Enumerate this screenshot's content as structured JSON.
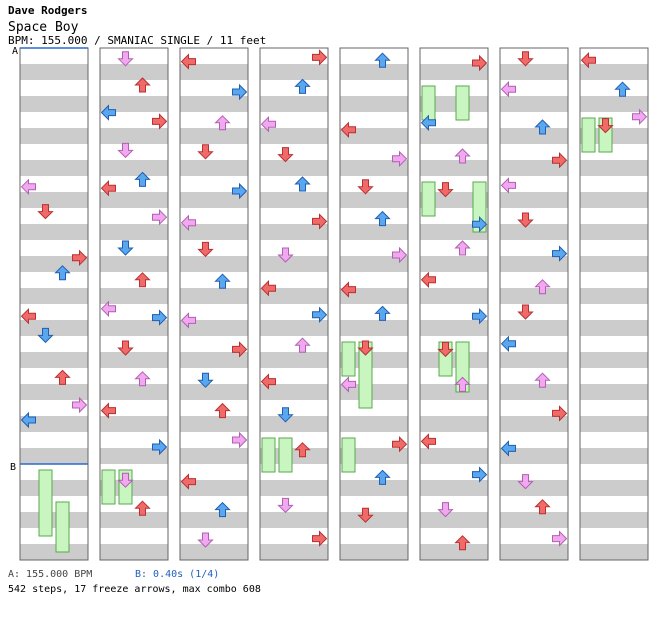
{
  "header": {
    "artist": "Dave Rodgers",
    "song": "Space Boy",
    "meta": "BPM: 155.000 / SMANIAC SINGLE / 11 feet"
  },
  "markers": {
    "a_label": "A",
    "b_label": "B"
  },
  "footer": {
    "bpm_note": "A: 155.000 BPM",
    "stop_note": "B: 0.40s (1/4)",
    "stats": "542 steps, 17 freeze arrows, max combo 608"
  },
  "colors": {
    "quarter_red": "#f06a6a",
    "eighth_blue": "#5aa6ef",
    "sixteenth_pink": "#f2a8f0",
    "freeze_green": "#c8f5c0",
    "stripe_gray": "#cccccc",
    "bpm_line": "#2a6ad0"
  },
  "chart_data": {
    "type": "step_chart",
    "columns": 8,
    "lanes": [
      "left",
      "down",
      "up",
      "right"
    ],
    "notes_per_column": [
      [
        [
          2,
          0,
          2,
          "left",
          "s"
        ],
        [
          2,
          1,
          4,
          "down",
          "q"
        ],
        [
          3,
          0,
          7,
          "right",
          "q"
        ],
        [
          3,
          1,
          2,
          "up",
          "e"
        ],
        [
          4,
          0,
          3,
          "left",
          "q"
        ],
        [
          4,
          1,
          1,
          "down",
          "e"
        ],
        [
          5,
          0,
          1,
          "up",
          "q"
        ],
        [
          5,
          1,
          5,
          "right",
          "s"
        ],
        [
          5,
          2,
          0,
          "left",
          "e"
        ]
      ],
      [
        [
          0,
          0,
          2,
          "down",
          "s"
        ],
        [
          0,
          1,
          5,
          "up",
          "q"
        ],
        [
          0,
          2,
          9,
          "left",
          "e"
        ],
        [
          1,
          0,
          1,
          "right",
          "q"
        ],
        [
          1,
          1,
          6,
          "down",
          "s"
        ],
        [
          1,
          2,
          11,
          "up",
          "e"
        ],
        [
          2,
          0,
          3,
          "left",
          "q"
        ],
        [
          2,
          1,
          8,
          "right",
          "s"
        ],
        [
          3,
          0,
          0,
          "down",
          "e"
        ],
        [
          3,
          1,
          7,
          "up",
          "q"
        ],
        [
          3,
          2,
          12,
          "left",
          "s"
        ],
        [
          4,
          0,
          4,
          "right",
          "e"
        ],
        [
          4,
          1,
          10,
          "down",
          "q"
        ],
        [
          5,
          0,
          2,
          "up",
          "s"
        ],
        [
          5,
          1,
          9,
          "left",
          "q"
        ],
        [
          6,
          0,
          5,
          "right",
          "e"
        ],
        [
          6,
          1,
          13,
          "down",
          "s"
        ],
        [
          7,
          0,
          3,
          "up",
          "q"
        ]
      ],
      [
        [
          0,
          0,
          4,
          "left",
          "q"
        ],
        [
          0,
          1,
          10,
          "right",
          "e"
        ],
        [
          1,
          0,
          2,
          "up",
          "s"
        ],
        [
          1,
          1,
          7,
          "down",
          "q"
        ],
        [
          2,
          0,
          5,
          "right",
          "e"
        ],
        [
          2,
          1,
          12,
          "left",
          "s"
        ],
        [
          3,
          0,
          1,
          "down",
          "q"
        ],
        [
          3,
          1,
          8,
          "up",
          "e"
        ],
        [
          4,
          0,
          6,
          "left",
          "s"
        ],
        [
          4,
          1,
          11,
          "right",
          "q"
        ],
        [
          5,
          0,
          3,
          "down",
          "e"
        ],
        [
          5,
          1,
          9,
          "up",
          "q"
        ],
        [
          6,
          0,
          0,
          "right",
          "s"
        ],
        [
          6,
          1,
          14,
          "left",
          "q"
        ],
        [
          7,
          0,
          4,
          "up",
          "e"
        ],
        [
          7,
          1,
          10,
          "down",
          "s"
        ]
      ],
      [
        [
          0,
          0,
          1,
          "right",
          "q"
        ],
        [
          0,
          1,
          6,
          "up",
          "e"
        ],
        [
          1,
          0,
          3,
          "left",
          "s"
        ],
        [
          1,
          1,
          9,
          "down",
          "q"
        ],
        [
          2,
          0,
          0,
          "up",
          "e"
        ],
        [
          2,
          1,
          11,
          "right",
          "q"
        ],
        [
          3,
          0,
          5,
          "down",
          "s"
        ],
        [
          3,
          1,
          13,
          "left",
          "q"
        ],
        [
          4,
          0,
          2,
          "right",
          "e"
        ],
        [
          4,
          1,
          8,
          "up",
          "s"
        ],
        [
          5,
          0,
          4,
          "left",
          "q"
        ],
        [
          5,
          1,
          12,
          "down",
          "e"
        ],
        [
          6,
          0,
          7,
          "up",
          "q"
        ],
        [
          7,
          0,
          1,
          "down",
          "s"
        ],
        [
          7,
          1,
          9,
          "right",
          "q"
        ]
      ],
      [
        [
          0,
          0,
          3,
          "up",
          "e"
        ],
        [
          1,
          0,
          7,
          "left",
          "q"
        ],
        [
          1,
          1,
          12,
          "right",
          "s"
        ],
        [
          2,
          0,
          2,
          "down",
          "q"
        ],
        [
          2,
          1,
          9,
          "up",
          "e"
        ],
        [
          3,
          0,
          5,
          "right",
          "s"
        ],
        [
          3,
          1,
          14,
          "left",
          "q"
        ],
        [
          4,
          0,
          1,
          "up",
          "e"
        ],
        [
          4,
          1,
          10,
          "down",
          "q"
        ],
        [
          5,
          0,
          6,
          "left",
          "s"
        ],
        [
          6,
          0,
          3,
          "right",
          "q"
        ],
        [
          6,
          1,
          11,
          "up",
          "e"
        ],
        [
          7,
          0,
          8,
          "down",
          "q"
        ]
      ],
      [
        [
          0,
          0,
          5,
          "right",
          "q"
        ],
        [
          1,
          0,
          2,
          "left",
          "e"
        ],
        [
          1,
          1,
          10,
          "up",
          "s"
        ],
        [
          2,
          0,
          4,
          "down",
          "q"
        ],
        [
          2,
          1,
          13,
          "right",
          "e"
        ],
        [
          3,
          0,
          0,
          "up",
          "s"
        ],
        [
          3,
          1,
          7,
          "left",
          "q"
        ],
        [
          4,
          0,
          3,
          "right",
          "e"
        ],
        [
          4,
          1,
          11,
          "down",
          "q"
        ],
        [
          5,
          0,
          6,
          "up",
          "s"
        ],
        [
          6,
          0,
          1,
          "left",
          "q"
        ],
        [
          6,
          1,
          9,
          "right",
          "e"
        ],
        [
          7,
          0,
          4,
          "down",
          "s"
        ],
        [
          7,
          1,
          12,
          "up",
          "q"
        ]
      ],
      [
        [
          0,
          0,
          2,
          "down",
          "q"
        ],
        [
          0,
          1,
          8,
          "left",
          "s"
        ],
        [
          1,
          0,
          5,
          "up",
          "e"
        ],
        [
          1,
          1,
          13,
          "right",
          "q"
        ],
        [
          2,
          0,
          1,
          "left",
          "s"
        ],
        [
          2,
          1,
          10,
          "down",
          "q"
        ],
        [
          3,
          0,
          4,
          "right",
          "e"
        ],
        [
          3,
          1,
          12,
          "up",
          "s"
        ],
        [
          4,
          0,
          0,
          "down",
          "q"
        ],
        [
          4,
          1,
          7,
          "left",
          "e"
        ],
        [
          5,
          0,
          3,
          "up",
          "s"
        ],
        [
          5,
          1,
          11,
          "right",
          "q"
        ],
        [
          6,
          0,
          6,
          "left",
          "e"
        ],
        [
          6,
          1,
          14,
          "down",
          "s"
        ],
        [
          7,
          0,
          2,
          "up",
          "q"
        ],
        [
          7,
          1,
          9,
          "right",
          "s"
        ]
      ],
      [
        [
          0,
          0,
          3,
          "left",
          "q"
        ],
        [
          0,
          1,
          8,
          "up",
          "e"
        ],
        [
          0,
          2,
          12,
          "right",
          "s"
        ],
        [
          1,
          0,
          4,
          "down",
          "q"
        ]
      ]
    ],
    "freezes_per_column": [
      [
        [
          6,
          1,
          8,
          "down"
        ],
        [
          7,
          0,
          4,
          "up"
        ]
      ],
      [
        [
          6,
          1,
          0,
          "left"
        ],
        [
          6,
          1,
          0,
          "down"
        ]
      ],
      [],
      [
        [
          6,
          0,
          0,
          "left"
        ],
        [
          6,
          0,
          0,
          "down"
        ]
      ],
      [
        [
          4,
          1,
          0,
          "left"
        ],
        [
          4,
          1,
          8,
          "down"
        ],
        [
          6,
          0,
          0,
          "left"
        ]
      ],
      [
        [
          0,
          1,
          0,
          "left"
        ],
        [
          0,
          1,
          0,
          "up"
        ],
        [
          2,
          0,
          0,
          "left"
        ],
        [
          2,
          0,
          4,
          "right"
        ],
        [
          4,
          1,
          0,
          "down"
        ],
        [
          4,
          1,
          4,
          "up"
        ]
      ],
      [],
      [
        [
          1,
          0,
          0,
          "left"
        ],
        [
          1,
          0,
          0,
          "down"
        ]
      ]
    ]
  }
}
